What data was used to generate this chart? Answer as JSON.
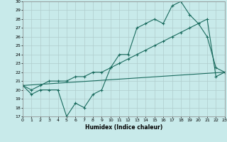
{
  "title": "",
  "xlabel": "Humidex (Indice chaleur)",
  "bg_color": "#c8eaea",
  "grid_color": "#b0cccc",
  "line_color": "#1a6b5e",
  "xmin": 0,
  "xmax": 23,
  "ymin": 17,
  "ymax": 30,
  "yticks": [
    17,
    18,
    19,
    20,
    21,
    22,
    23,
    24,
    25,
    26,
    27,
    28,
    29,
    30
  ],
  "xticks": [
    0,
    1,
    2,
    3,
    4,
    5,
    6,
    7,
    8,
    9,
    10,
    11,
    12,
    13,
    14,
    15,
    16,
    17,
    18,
    19,
    20,
    21,
    22,
    23
  ],
  "series1_x": [
    0,
    1,
    2,
    3,
    4,
    5,
    6,
    7,
    8,
    9,
    10,
    11,
    12,
    13,
    14,
    15,
    16,
    17,
    18,
    19,
    20,
    21,
    22,
    23
  ],
  "series1_y": [
    20.5,
    19.5,
    20.0,
    20.0,
    20.0,
    17.0,
    18.5,
    18.0,
    19.5,
    20.0,
    22.5,
    24.0,
    24.0,
    27.0,
    27.5,
    28.0,
    27.5,
    29.5,
    30.0,
    28.5,
    27.5,
    26.0,
    22.5,
    22.0
  ],
  "series2_x": [
    0,
    1,
    2,
    3,
    4,
    5,
    6,
    7,
    8,
    9,
    10,
    11,
    12,
    13,
    14,
    15,
    16,
    17,
    18,
    19,
    20,
    21,
    22,
    23
  ],
  "series2_y": [
    20.5,
    20.0,
    20.5,
    21.0,
    21.0,
    21.0,
    21.5,
    21.5,
    22.0,
    22.0,
    22.5,
    23.0,
    23.5,
    24.0,
    24.5,
    25.0,
    25.5,
    26.0,
    26.5,
    27.0,
    27.5,
    28.0,
    21.5,
    22.0
  ],
  "series3_x": [
    0,
    23
  ],
  "series3_y": [
    20.5,
    22.0
  ]
}
